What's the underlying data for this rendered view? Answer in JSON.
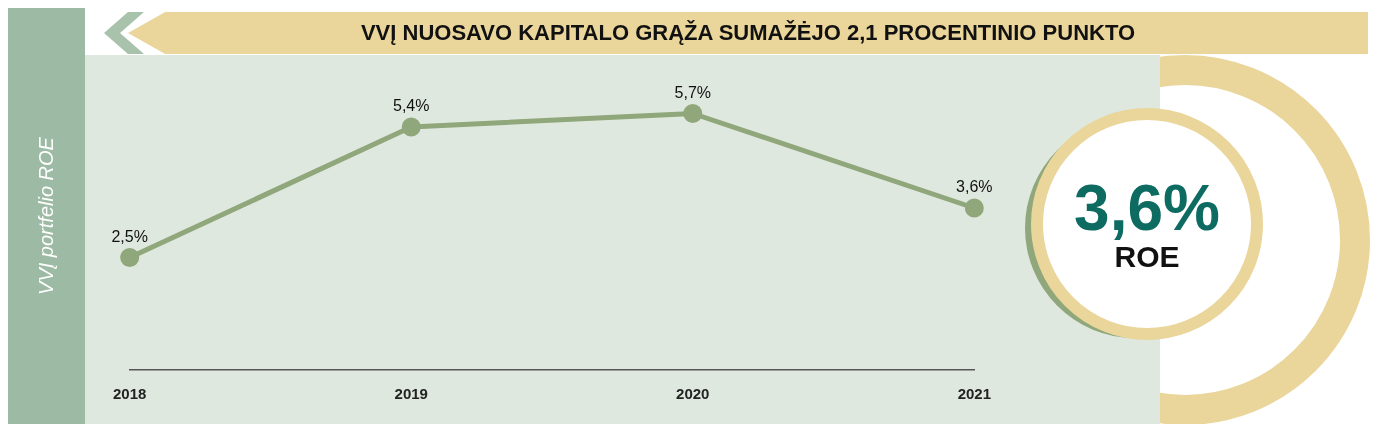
{
  "chart_data": {
    "type": "line",
    "title": "VVĮ NUOSAVO KAPITALO GRĄŽA SUMAŽĖJO 2,1 PROCENTINIO PUNKTO",
    "ylabel": "VVĮ portfelio ROE",
    "categories": [
      "2018",
      "2019",
      "2020",
      "2021"
    ],
    "series": [
      {
        "color": "#8fa77a",
        "values": [
          2.5,
          5.4,
          5.7,
          3.6
        ],
        "value_labels": [
          "2,5%",
          "5,4%",
          "5,7%",
          "3,6%"
        ]
      }
    ],
    "marker": "circle",
    "line_style": "solid",
    "grid": false,
    "legend": false,
    "tick_labels": "x",
    "annotations": [
      "3,6%",
      "ROE"
    ]
  }
}
